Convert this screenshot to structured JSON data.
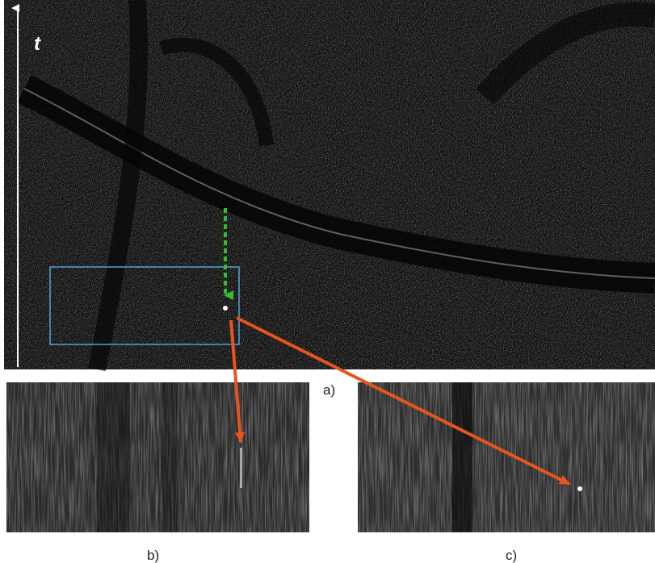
{
  "axis_label": "t",
  "panels": [
    {
      "label": "a)"
    },
    {
      "label": "b)"
    },
    {
      "label": "c)"
    }
  ]
}
